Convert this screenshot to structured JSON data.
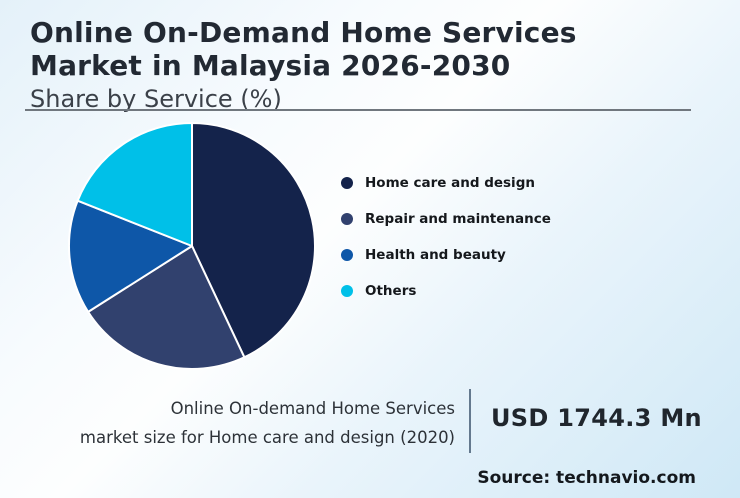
{
  "header": {
    "title_line1": "Online On-Demand Home Services",
    "title_line2": "Market in Malaysia 2026-2030",
    "subtitle": "Share by Service (%)"
  },
  "chart_data": {
    "type": "pie",
    "title": "Online On-Demand Home Services Market in Malaysia 2026-2030",
    "subtitle": "Share by Service (%)",
    "categories": [
      "Home care and design",
      "Repair and maintenance",
      "Health and beauty",
      "Others"
    ],
    "values": [
      43,
      23,
      15,
      19
    ],
    "unit": "%",
    "colors": [
      "#14234b",
      "#31416e",
      "#0e57a8",
      "#00c0e8"
    ],
    "slice_separator_color": "#ffffff",
    "legend_position": "right",
    "start_angle_deg": 0,
    "direction": "clockwise",
    "data_labels_shown": false
  },
  "footer": {
    "note_line1": "Online On-demand Home Services",
    "note_line2": "market size for Home care and design (2020)",
    "value": "USD 1744.3 Mn",
    "source": "Source: technavio.com"
  },
  "style": {
    "background_start": "#e4f1f9",
    "background_end": "#cfe8f6",
    "divider_color": "#70777e",
    "vertical_divider_color": "#64798e",
    "title_color": "#222933"
  }
}
